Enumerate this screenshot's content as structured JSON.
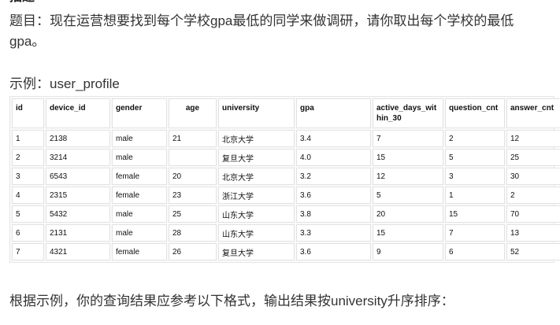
{
  "heading_partial": "描述",
  "problem_text": "题目：现在运营想要找到每个学校gpa最低的同学来做调研，请你取出每个学校的最低gpa。",
  "example_label": "示例：user_profile",
  "table": {
    "headers": [
      "id",
      "device_id",
      "gender",
      "age",
      "university",
      "gpa",
      "active_days_within_30",
      "question_cnt",
      "answer_cnt"
    ],
    "rows": [
      [
        "1",
        "2138",
        "male",
        "21",
        "北京大学",
        "3.4",
        "7",
        "2",
        "12"
      ],
      [
        "2",
        "3214",
        "male",
        "",
        "复旦大学",
        "4.0",
        "15",
        "5",
        "25"
      ],
      [
        "3",
        "6543",
        "female",
        "20",
        "北京大学",
        "3.2",
        "12",
        "3",
        "30"
      ],
      [
        "4",
        "2315",
        "female",
        "23",
        "浙江大学",
        "3.6",
        "5",
        "1",
        "2"
      ],
      [
        "5",
        "5432",
        "male",
        "25",
        "山东大学",
        "3.8",
        "20",
        "15",
        "70"
      ],
      [
        "6",
        "2131",
        "male",
        "28",
        "山东大学",
        "3.3",
        "15",
        "7",
        "13"
      ],
      [
        "7",
        "4321",
        "female",
        "26",
        "复旦大学",
        "3.6",
        "9",
        "6",
        "52"
      ]
    ]
  },
  "result_note": "根据示例，你的查询结果应参考以下格式，输出结果按university升序排序："
}
